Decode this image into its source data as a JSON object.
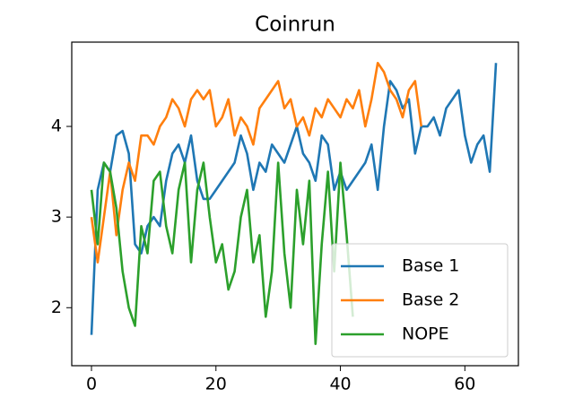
{
  "chart_data": {
    "type": "line",
    "title": "Coinrun",
    "x": [
      0,
      1,
      2,
      3,
      4,
      5,
      6,
      7,
      8,
      9,
      10,
      11,
      12,
      13,
      14,
      15,
      16,
      17,
      18,
      19,
      20,
      21,
      22,
      23,
      24,
      25,
      26,
      27,
      28,
      29,
      30,
      31,
      32,
      33,
      34,
      35,
      36,
      37,
      38,
      39,
      40,
      41,
      42,
      43,
      44,
      45,
      46,
      47,
      48,
      49,
      50,
      51,
      52,
      53,
      54,
      55,
      56,
      57,
      58,
      59,
      60,
      61,
      62,
      63,
      64,
      65
    ],
    "series": [
      {
        "name": "Base 1",
        "color": "#1f77b4",
        "values": [
          1.7,
          3.3,
          3.6,
          3.5,
          3.9,
          3.95,
          3.7,
          2.7,
          2.6,
          2.9,
          3.0,
          2.9,
          3.4,
          3.7,
          3.8,
          3.6,
          3.9,
          3.4,
          3.2,
          3.2,
          3.3,
          3.4,
          3.5,
          3.6,
          3.9,
          3.7,
          3.3,
          3.6,
          3.5,
          3.8,
          3.7,
          3.6,
          3.8,
          4.0,
          3.7,
          3.6,
          3.4,
          3.9,
          3.8,
          3.3,
          3.5,
          3.3,
          3.4,
          3.5,
          3.6,
          3.8,
          3.3,
          4.0,
          4.5,
          4.4,
          4.2,
          4.3,
          3.7,
          4.0,
          4.0,
          4.1,
          3.9,
          4.2,
          4.3,
          4.4,
          3.9,
          3.6,
          3.8,
          3.9,
          3.5,
          4.7
        ]
      },
      {
        "name": "Base 2",
        "color": "#ff7f0e",
        "values": [
          3.0,
          2.5,
          3.0,
          3.5,
          2.8,
          3.3,
          3.6,
          3.4,
          3.9,
          3.9,
          3.8,
          4.0,
          4.1,
          4.3,
          4.2,
          4.0,
          4.3,
          4.4,
          4.3,
          4.4,
          4.0,
          4.1,
          4.3,
          3.9,
          4.1,
          4.0,
          3.8,
          4.2,
          4.3,
          4.4,
          4.5,
          4.2,
          4.3,
          4.0,
          4.1,
          3.9,
          4.2,
          4.1,
          4.3,
          4.2,
          4.1,
          4.3,
          4.2,
          4.4,
          4.0,
          4.3,
          4.7,
          4.6,
          4.4,
          4.3,
          4.1,
          4.4,
          4.5,
          4.0,
          null,
          null,
          null,
          null,
          null,
          null,
          null,
          null,
          null,
          null,
          null,
          null
        ]
      },
      {
        "name": "NOPE",
        "color": "#2ca02c",
        "values": [
          3.3,
          2.7,
          3.6,
          3.5,
          3.1,
          2.4,
          2.0,
          1.8,
          2.9,
          2.6,
          3.4,
          3.5,
          2.9,
          2.6,
          3.3,
          3.6,
          2.5,
          3.3,
          3.6,
          3.0,
          2.5,
          2.7,
          2.2,
          2.4,
          3.0,
          3.3,
          2.5,
          2.8,
          1.9,
          2.4,
          3.6,
          2.6,
          2.0,
          3.3,
          2.7,
          3.4,
          1.6,
          2.7,
          3.5,
          2.4,
          3.6,
          2.8,
          1.9,
          null,
          null,
          null,
          null,
          null,
          null,
          null,
          null,
          null,
          null,
          null,
          null,
          null,
          null,
          null,
          null,
          null,
          null,
          null,
          null,
          null,
          null,
          null
        ]
      }
    ],
    "xlim": [
      -3.17,
      68.6
    ],
    "xticks": [
      0,
      20,
      40,
      60
    ],
    "ylim": [
      1.36,
      4.93
    ],
    "yticks": [
      2,
      3,
      4
    ],
    "legend": "lower right"
  }
}
